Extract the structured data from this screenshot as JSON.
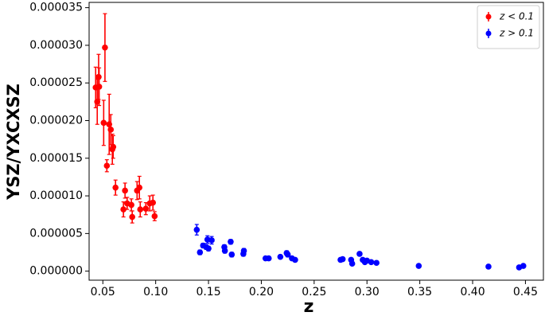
{
  "chart_data": {
    "type": "scatter",
    "xlabel": "z",
    "ylabel": "YSZ/YXCXSZ",
    "xlim": [
      0.037,
      0.467
    ],
    "ylim": [
      -1.2e-06,
      3.57e-05
    ],
    "xticks": [
      0.05,
      {
        "value": 0.1,
        "label": "0.10"
      },
      0.15,
      {
        "value": 0.2,
        "label": "0.20"
      },
      0.25,
      {
        "value": 0.3,
        "label": "0.30"
      },
      0.35,
      {
        "value": 0.4,
        "label": "0.40"
      },
      0.45
    ],
    "yticks": [
      {
        "value": 0,
        "label": "0.000000"
      },
      {
        "value": 5e-06,
        "label": "0.000005"
      },
      {
        "value": 1e-05,
        "label": "0.000010"
      },
      {
        "value": 1.5e-05,
        "label": "0.000015"
      },
      {
        "value": 2e-05,
        "label": "0.000020"
      },
      {
        "value": 2.5e-05,
        "label": "0.000025"
      },
      {
        "value": 3e-05,
        "label": "0.000030"
      },
      {
        "value": 3.5e-05,
        "label": "0.000035"
      }
    ],
    "legend": "upper right",
    "series": [
      {
        "name": "z < 0.1",
        "color": "#ff0000",
        "x": [
          0.0432,
          0.0447,
          0.046,
          0.0465,
          0.052,
          0.0508,
          0.056,
          0.0575,
          0.059,
          0.0598,
          0.0538,
          0.062,
          0.071,
          0.0695,
          0.073,
          0.077,
          0.0778,
          0.0824,
          0.0846,
          0.0854,
          0.0907,
          0.0944,
          0.0974,
          0.099
        ],
        "values": [
          2.44e-05,
          2.25e-05,
          2.58e-05,
          2.45e-05,
          2.97e-05,
          1.97e-05,
          1.95e-05,
          1.88e-05,
          1.62e-05,
          1.65e-05,
          1.4e-05,
          1.11e-05,
          1.07e-05,
          8.2e-06,
          9e-06,
          8.8e-06,
          7.2e-06,
          1.07e-05,
          1.11e-05,
          8.2e-06,
          8.3e-06,
          9e-06,
          9.1e-06,
          7.3e-06
        ],
        "errors": [
          2.7e-06,
          3e-06,
          3e-06,
          2.5e-06,
          4.5e-06,
          3e-06,
          4e-06,
          2e-06,
          2e-06,
          1.5e-06,
          8e-07,
          1e-06,
          1e-06,
          1e-06,
          8e-07,
          8e-07,
          8e-07,
          1.2e-06,
          1.5e-06,
          1e-06,
          8e-07,
          1e-06,
          1e-06,
          6e-07
        ]
      },
      {
        "name": "z > 0.1",
        "color": "#0000ff",
        "x": [
          0.1389,
          0.1419,
          0.1449,
          0.1479,
          0.149,
          0.15,
          0.153,
          0.165,
          0.1655,
          0.171,
          0.172,
          0.183,
          0.1835,
          0.204,
          0.207,
          0.218,
          0.224,
          0.225,
          0.229,
          0.232,
          0.275,
          0.277,
          0.285,
          0.286,
          0.293,
          0.296,
          0.298,
          0.3,
          0.304,
          0.309,
          0.349,
          0.415,
          0.444,
          0.448
        ],
        "values": [
          5.5e-06,
          2.5e-06,
          3.4e-06,
          3.2e-06,
          4.2e-06,
          3e-06,
          4.1e-06,
          3.2e-06,
          2.7e-06,
          3.9e-06,
          2.2e-06,
          2.3e-06,
          2.7e-06,
          1.7e-06,
          1.7e-06,
          1.9e-06,
          2.4e-06,
          2.2e-06,
          1.7e-06,
          1.5e-06,
          1.5e-06,
          1.6e-06,
          1.5e-06,
          1e-06,
          2.3e-06,
          1.5e-06,
          1.2e-06,
          1.4e-06,
          1.2e-06,
          1.1e-06,
          7e-07,
          6e-07,
          5e-07,
          7e-07
        ],
        "errors": [
          7e-07,
          3e-07,
          3e-07,
          3e-07,
          5e-07,
          3e-07,
          5e-07,
          3e-07,
          3e-07,
          3e-07,
          3e-07,
          3e-07,
          3e-07,
          2e-07,
          2e-07,
          2e-07,
          3e-07,
          3e-07,
          2e-07,
          2e-07,
          2e-07,
          2e-07,
          2e-07,
          2e-07,
          2e-07,
          2e-07,
          2e-07,
          2e-07,
          2e-07,
          2e-07,
          2e-07,
          2e-07,
          2e-07,
          2e-07
        ]
      }
    ]
  }
}
